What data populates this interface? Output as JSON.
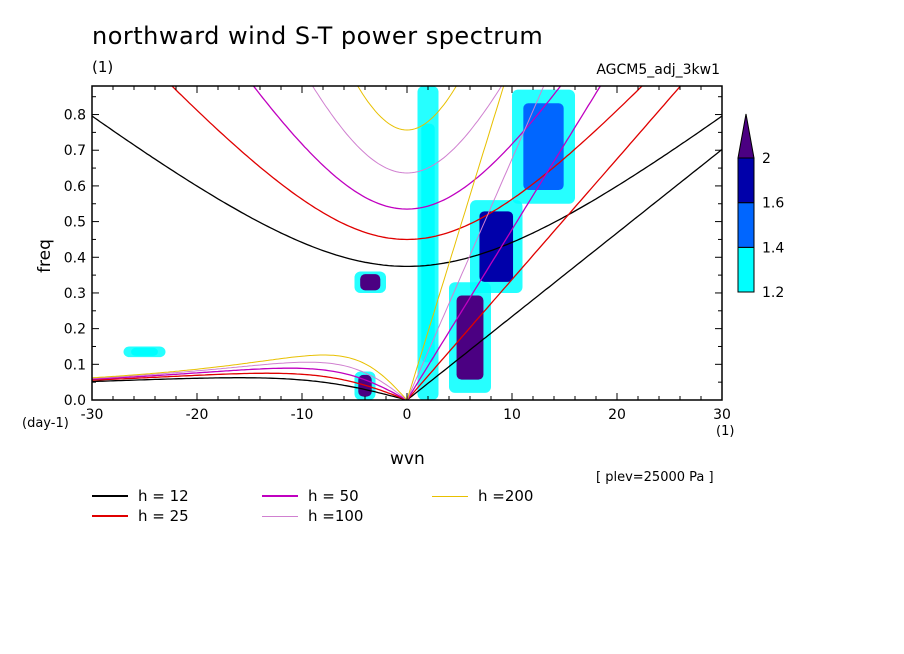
{
  "title": "northward wind S-T power spectrum",
  "unit_note": "(1)",
  "run_name": "AGCM5_adj_3kw1",
  "plev_note": "[ plev=25000 Pa ]",
  "colors": {
    "black": "#000000",
    "red": "#e00000",
    "magenta": "#c000c0",
    "pink": "#d080d0",
    "gold": "#e8c000",
    "shade_12": "#00ffff",
    "shade_14": "#0066ff",
    "shade_16": "#0000aa",
    "shade_20": "#4b0082"
  },
  "chart_data": {
    "type": "heatmap",
    "title": "northward wind S-T power spectrum",
    "xlabel": "wvn",
    "ylabel": "freq",
    "x_unit": "(1)",
    "y_unit": "(day-1)",
    "xlim": [
      -30,
      30
    ],
    "ylim": [
      0,
      0.88
    ],
    "x_ticks": [
      "-30",
      "-20",
      "-10",
      "0",
      "10",
      "20",
      "30"
    ],
    "y_ticks": [
      "0.0",
      "0.1",
      "0.2",
      "0.3",
      "0.4",
      "0.5",
      "0.6",
      "0.7",
      "0.8"
    ],
    "colorbar": {
      "levels": [
        "1.2",
        "1.4",
        "1.6",
        "2"
      ],
      "extend": "max"
    },
    "dispersion_curves": [
      {
        "label": "h = 12",
        "h": 12,
        "color": "#000000"
      },
      {
        "label": "h = 25",
        "h": 25,
        "color": "#e00000"
      },
      {
        "label": "h = 50",
        "h": 50,
        "color": "#c000c0"
      },
      {
        "label": "h =100",
        "h": 100,
        "color": "#d080d0"
      },
      {
        "label": "h =200",
        "h": 200,
        "color": "#e8c000"
      }
    ],
    "shaded_regions": [
      {
        "x_range": [
          4,
          8
        ],
        "y_range": [
          0.02,
          0.33
        ],
        "level": 2
      },
      {
        "x_range": [
          6,
          11
        ],
        "y_range": [
          0.3,
          0.56
        ],
        "level": 1.6
      },
      {
        "x_range": [
          -5,
          -2
        ],
        "y_range": [
          0.3,
          0.36
        ],
        "level": 2
      },
      {
        "x_range": [
          -5,
          -3
        ],
        "y_range": [
          0.0,
          0.08
        ],
        "level": 2
      },
      {
        "x_range": [
          10,
          16
        ],
        "y_range": [
          0.55,
          0.87
        ],
        "level": 1.4
      },
      {
        "x_range": [
          1,
          3
        ],
        "y_range": [
          0.0,
          0.88
        ],
        "level": 1.2
      },
      {
        "x_range": [
          -27,
          -23
        ],
        "y_range": [
          0.12,
          0.15
        ],
        "level": 1.2
      }
    ]
  }
}
